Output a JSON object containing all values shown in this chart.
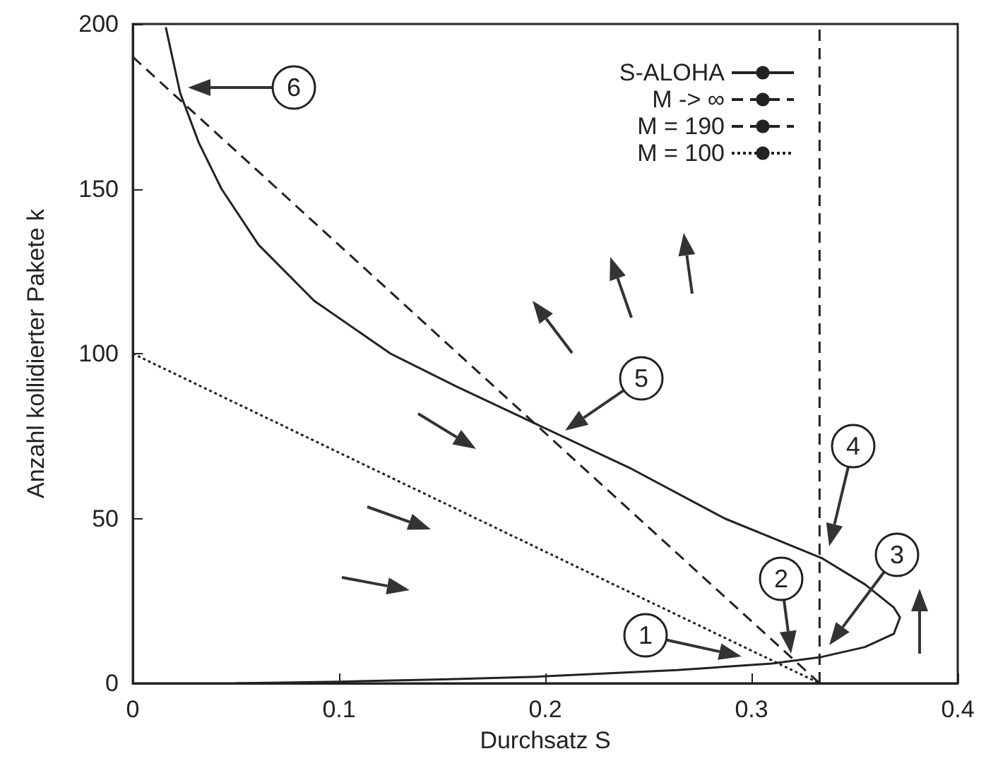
{
  "chart_data": {
    "type": "line",
    "xlabel": "Durchsatz S",
    "ylabel": "Anzahl kollidierter Pakete k",
    "xlim": [
      0,
      0.4
    ],
    "xticks": [
      0,
      0.1,
      0.2,
      0.3,
      0.4
    ],
    "ylim": [
      0,
      200
    ],
    "yticks": [
      0,
      50,
      100,
      150,
      200
    ],
    "grid": false,
    "legend": "top right",
    "marker": "none",
    "series": [
      {
        "name": "S-ALOHA",
        "color": "#222222",
        "line_style": "solid",
        "x": [
          0.016,
          0.023,
          0.032,
          0.043,
          0.061,
          0.088,
          0.125,
          0.157,
          0.191,
          0.242,
          0.287,
          0.334,
          0.355,
          0.369,
          0.372,
          0.369,
          0.355,
          0.334,
          0.31,
          0.264,
          0.196,
          0.15,
          0.1,
          0.05
        ],
        "values": [
          199,
          179,
          164,
          150,
          133,
          116,
          100,
          90,
          80,
          65,
          50,
          38,
          30,
          23,
          20,
          15,
          11,
          8,
          6,
          4,
          2,
          1.2,
          0.5,
          0
        ]
      },
      {
        "name": "M -> ∞",
        "color": "#222222",
        "line_style": "dashed",
        "x": [
          0.333,
          0.333
        ],
        "values": [
          0,
          200
        ]
      },
      {
        "name": "M = 190",
        "color": "#222222",
        "line_style": "dashed",
        "x": [
          0,
          0.333
        ],
        "values": [
          190,
          0
        ]
      },
      {
        "name": "M = 100",
        "color": "#222222",
        "line_style": "dotted",
        "x": [
          0,
          0.333
        ],
        "values": [
          100,
          0
        ]
      }
    ],
    "annotations": [
      "1",
      "2",
      "3",
      "4",
      "5",
      "6"
    ]
  }
}
